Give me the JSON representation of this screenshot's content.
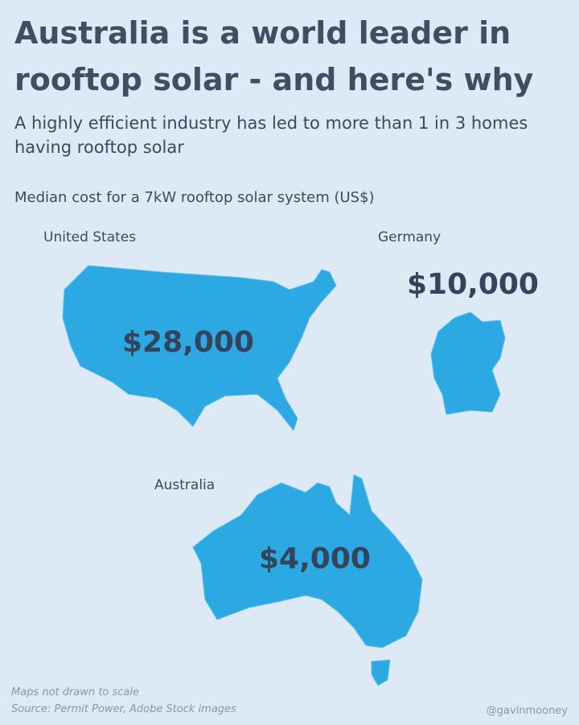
{
  "header": {
    "title": "Australia is a world leader in rooftop solar - and here's why",
    "subtitle": "A highly efficient industry has led to more than 1 in 3 homes having rooftop solar"
  },
  "map_label": "Median cost for a 7kW rooftop solar system (US$)",
  "countries": [
    {
      "name": "United States",
      "cost": "$28,000"
    },
    {
      "name": "Germany",
      "cost": "$10,000"
    },
    {
      "name": "Australia",
      "cost": "$4,000"
    }
  ],
  "footer": {
    "note": "Maps not drawn to scale",
    "source": "Source: Permit Power, Adobe Stock images",
    "credit": "@gavinmooney"
  }
}
